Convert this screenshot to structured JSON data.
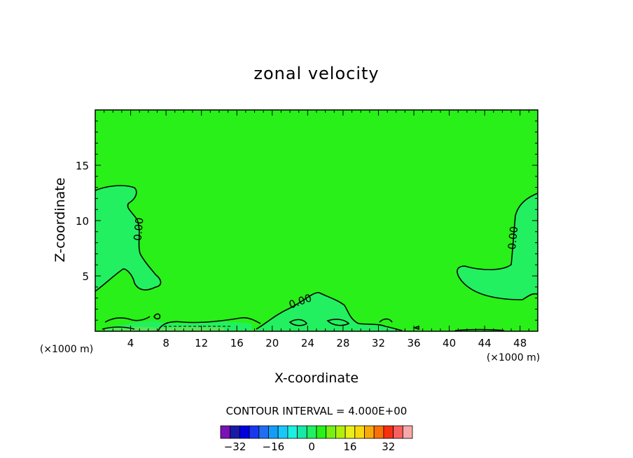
{
  "chart_data": {
    "type": "heatmap",
    "title": "zonal velocity",
    "xlabel": "X-coordinate",
    "ylabel": "Z-coordinate",
    "x_unit": "(×1000 m)",
    "y_unit": "(×1000 m)",
    "xlim": [
      0,
      50
    ],
    "ylim": [
      0,
      20
    ],
    "x_ticks": [
      4,
      8,
      12,
      16,
      20,
      24,
      28,
      32,
      36,
      40,
      44,
      48
    ],
    "y_ticks": [
      5,
      10,
      15
    ],
    "field_background_value": 2,
    "contour_labels": [
      {
        "text": "0.00",
        "x": 5.3,
        "z": 9.2
      },
      {
        "text": "0.00",
        "x": 23.3,
        "z": 2.4
      },
      {
        "text": "0.00",
        "x": 47.6,
        "z": 8.4
      }
    ],
    "colorbar": {
      "caption": "CONTOUR INTERVAL = 4.000E+00",
      "tick_values": [
        -32,
        -16,
        0,
        16,
        32
      ],
      "tick_labels": [
        "-32",
        "-16",
        "0",
        "16",
        "32"
      ],
      "levels": [
        -38,
        -34,
        -30,
        -26,
        -22,
        -18,
        -14,
        -10,
        -6,
        -2,
        2,
        6,
        10,
        14,
        18,
        22,
        26,
        30,
        34,
        38
      ],
      "colors": [
        "#7a10b8",
        "#1a1aa8",
        "#0000e0",
        "#1838f0",
        "#1e6ef0",
        "#129ef8",
        "#18c8f8",
        "#1cf0e0",
        "#18e8a8",
        "#22f060",
        "#28f018",
        "#78f010",
        "#b0f010",
        "#e8f018",
        "#f8d810",
        "#f8a808",
        "#f87008",
        "#f83010",
        "#f86060",
        "#f8a8a8"
      ]
    },
    "colors": {
      "background_field": "#28f018",
      "weak_region": "#22f060",
      "contour_line": "#000000"
    }
  }
}
